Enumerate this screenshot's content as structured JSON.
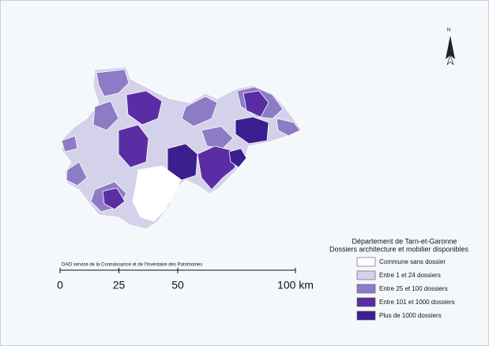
{
  "map": {
    "north": "N",
    "credit": "DAO service de la Connaissance et de l'Inventaire des Patrimoines",
    "scale_bar": {
      "ticks": [
        {
          "value": 0,
          "label": "0"
        },
        {
          "value": 25,
          "label": "25"
        },
        {
          "value": 50,
          "label": "50"
        },
        {
          "value": 100,
          "label": "100 km"
        }
      ]
    },
    "legend": {
      "title": [
        "Département de Tarn-et-Garonne",
        "Dossiers architecture et mobilier disponibles"
      ],
      "entries": [
        {
          "label": "Commune sans dossier",
          "color": "#ffffff"
        },
        {
          "label": "Entre 1 et 24 dossiers",
          "color": "#d4d1ea"
        },
        {
          "label": "Entre 25 et 100 dossiers",
          "color": "#8e7bc6"
        },
        {
          "label": "Entre 101 et 1000 dossiers",
          "color": "#5b2da4"
        },
        {
          "label": "Plus de 1000 dossiers",
          "color": "#3b1f8e"
        }
      ]
    }
  }
}
